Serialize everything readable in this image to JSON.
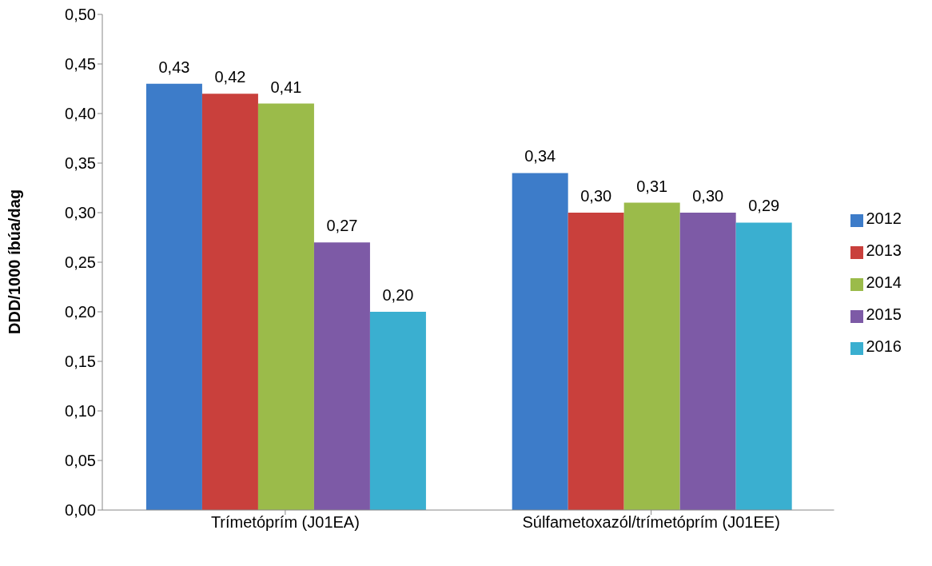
{
  "chart_data": {
    "type": "bar",
    "ylabel": "DDD/1000 íbúa/dag",
    "categories": [
      "Trímetóprím (J01EA)",
      "Súlfametoxazól/trímetóprím (J01EE)"
    ],
    "series": [
      {
        "name": "2012",
        "color": "#3d7cc9",
        "values": [
          0.43,
          0.34
        ],
        "value_labels": [
          "0,43",
          "0,34"
        ]
      },
      {
        "name": "2013",
        "color": "#c9403c",
        "values": [
          0.42,
          0.3
        ],
        "value_labels": [
          "0,42",
          "0,30"
        ]
      },
      {
        "name": "2014",
        "color": "#9bbb4a",
        "values": [
          0.41,
          0.31
        ],
        "value_labels": [
          "0,41",
          "0,31"
        ]
      },
      {
        "name": "2015",
        "color": "#7d5aa6",
        "values": [
          0.27,
          0.3
        ],
        "value_labels": [
          "0,27",
          "0,30"
        ]
      },
      {
        "name": "2016",
        "color": "#3aafd0",
        "values": [
          0.2,
          0.29
        ],
        "value_labels": [
          "0,20",
          "0,29"
        ]
      }
    ],
    "ylim": [
      0,
      0.5
    ],
    "yticks": [
      {
        "value": 0,
        "label": "0,00"
      },
      {
        "value": 0.05,
        "label": "0,05"
      },
      {
        "value": 0.1,
        "label": "0,10"
      },
      {
        "value": 0.15,
        "label": "0,15"
      },
      {
        "value": 0.2,
        "label": "0,20"
      },
      {
        "value": 0.25,
        "label": "0,25"
      },
      {
        "value": 0.3,
        "label": "0,30"
      },
      {
        "value": 0.35,
        "label": "0,35"
      },
      {
        "value": 0.4,
        "label": "0,40"
      },
      {
        "value": 0.45,
        "label": "0,45"
      },
      {
        "value": 0.5,
        "label": "0,50"
      }
    ],
    "grid": false,
    "legend": "right"
  }
}
